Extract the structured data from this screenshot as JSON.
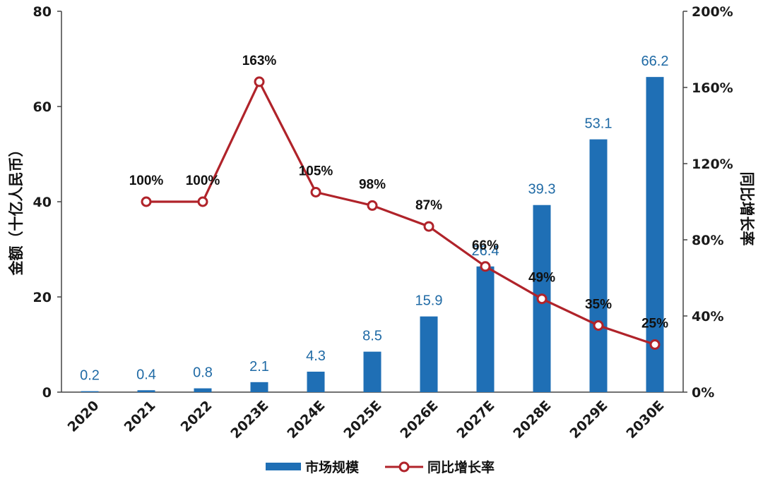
{
  "chart_data": {
    "type": "bar",
    "categories": [
      "2020",
      "2021",
      "2022",
      "2023E",
      "2024E",
      "2025E",
      "2026E",
      "2027E",
      "2028E",
      "2029E",
      "2030E"
    ],
    "series": [
      {
        "name": "市场规模",
        "type": "bar",
        "axis": "left",
        "values": [
          0.2,
          0.4,
          0.8,
          2.1,
          4.3,
          8.5,
          15.9,
          26.4,
          39.3,
          53.1,
          66.2
        ],
        "labels": [
          "0.2",
          "0.4",
          "0.8",
          "2.1",
          "4.3",
          "8.5",
          "15.9",
          "26.4",
          "39.3",
          "53.1",
          "66.2"
        ],
        "color": "#1f6fb5"
      },
      {
        "name": "同比增长率",
        "type": "line",
        "axis": "right",
        "values": [
          null,
          100,
          100,
          163,
          105,
          98,
          87,
          66,
          49,
          35,
          25
        ],
        "labels": [
          "",
          "100%",
          "100%",
          "163%",
          "105%",
          "98%",
          "87%",
          "66%",
          "49%",
          "35%",
          "25%"
        ],
        "color": "#b0232a"
      }
    ],
    "ylabel": "金额（十亿人民币）",
    "y2label": "同比增长率",
    "ylim": [
      0,
      80
    ],
    "y2lim": [
      0,
      200
    ],
    "yticks": [
      "0",
      "20",
      "40",
      "60",
      "80"
    ],
    "y2ticks": [
      "0%",
      "40%",
      "80%",
      "120%",
      "160%",
      "200%"
    ],
    "grid": false,
    "legend": "bottom"
  }
}
